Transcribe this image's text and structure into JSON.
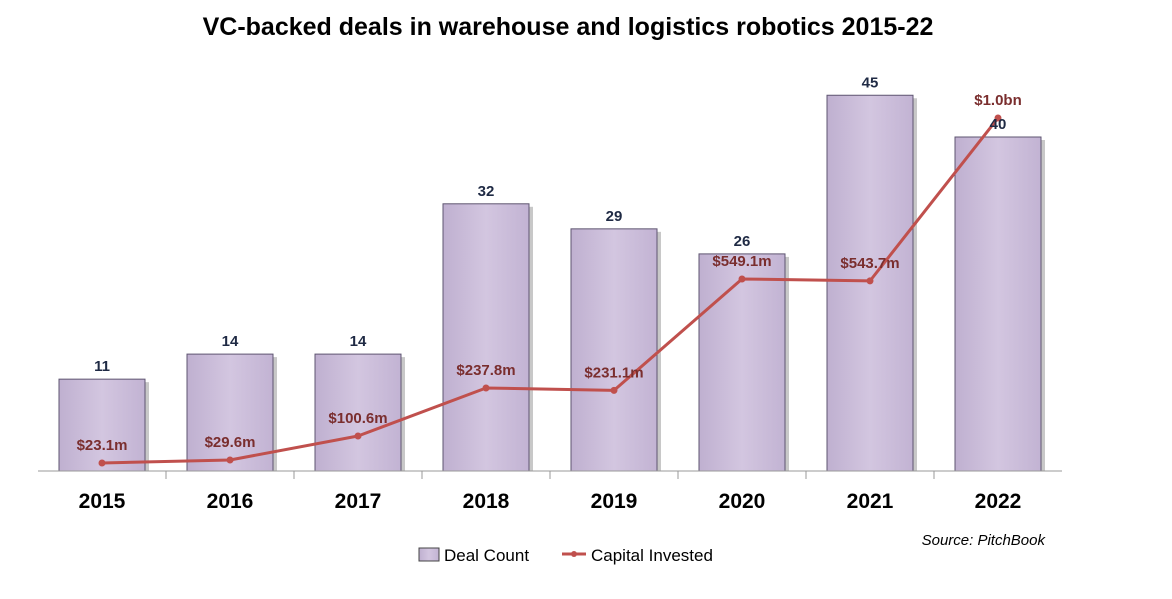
{
  "chart_data": {
    "type": "bar",
    "title": "VC-backed deals in warehouse and logistics robotics 2015-22",
    "categories": [
      "2015",
      "2016",
      "2017",
      "2018",
      "2019",
      "2020",
      "2021",
      "2022"
    ],
    "series": [
      {
        "name": "Deal Count",
        "type": "bar",
        "values": [
          11,
          14,
          14,
          32,
          29,
          26,
          45,
          40
        ],
        "labels": [
          "11",
          "14",
          "14",
          "32",
          "29",
          "26",
          "45",
          "40"
        ],
        "color": "#cdbfdb"
      },
      {
        "name": "Capital Invested",
        "type": "line",
        "values_musd": [
          23.1,
          29.6,
          100.6,
          237.8,
          231.1,
          549.1,
          543.7,
          1000
        ],
        "labels": [
          "$23.1m",
          "$29.6m",
          "$100.6m",
          "$237.8m",
          "$231.1m",
          "$549.1m",
          "$543.7m",
          "$1.0bn"
        ],
        "color": "#c0504d"
      }
    ],
    "ylim_deals": [
      0,
      45
    ],
    "xlabel": "",
    "ylabel": "",
    "grid": false,
    "legend_position": "bottom",
    "source": "Source: PitchBook"
  }
}
